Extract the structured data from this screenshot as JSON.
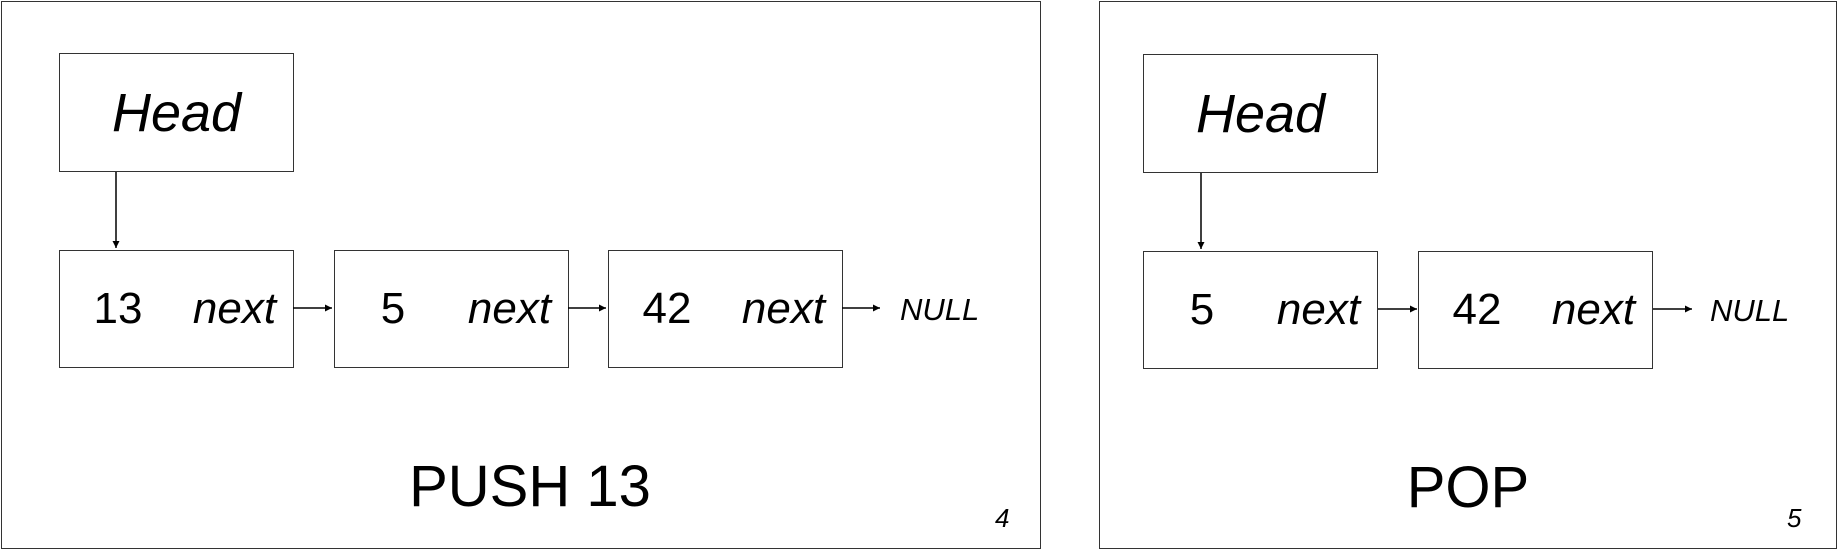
{
  "slides": [
    {
      "head_label": "Head",
      "nodes": [
        {
          "value": "13",
          "next_label": "next"
        },
        {
          "value": "5",
          "next_label": "next"
        },
        {
          "value": "42",
          "next_label": "next"
        }
      ],
      "terminator": "NULL",
      "caption": "PUSH 13",
      "slide_number": "4"
    },
    {
      "head_label": "Head",
      "nodes": [
        {
          "value": "5",
          "next_label": "next"
        },
        {
          "value": "42",
          "next_label": "next"
        }
      ],
      "terminator": "NULL",
      "caption": "POP",
      "slide_number": "5"
    }
  ]
}
